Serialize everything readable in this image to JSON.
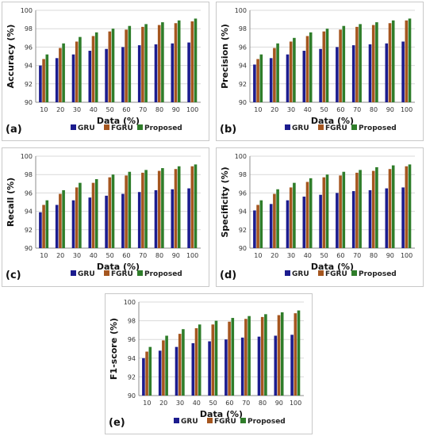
{
  "colors": {
    "GRU": "#1c1c8e",
    "FGRU": "#a5561f",
    "Proposed": "#2f7d2a"
  },
  "chart_data": [
    {
      "type": "bar",
      "label": "(a)",
      "xlabel": "Data (%)",
      "ylabel": "Accuracy (%)",
      "ylim": [
        90,
        100
      ],
      "yticks": [
        90,
        92,
        94,
        96,
        98,
        100
      ],
      "categories": [
        "10",
        "20",
        "30",
        "40",
        "50",
        "60",
        "70",
        "80",
        "90",
        "100"
      ],
      "series": [
        {
          "name": "GRU",
          "values": [
            94.0,
            94.8,
            95.2,
            95.6,
            95.8,
            96.0,
            96.2,
            96.3,
            96.4,
            96.5
          ]
        },
        {
          "name": "FGRU",
          "values": [
            94.7,
            95.9,
            96.6,
            97.2,
            97.7,
            97.9,
            98.2,
            98.4,
            98.6,
            98.8
          ]
        },
        {
          "name": "Proposed",
          "values": [
            95.2,
            96.4,
            97.1,
            97.6,
            98.0,
            98.3,
            98.5,
            98.7,
            98.9,
            99.1
          ]
        }
      ],
      "legend": "bottom"
    },
    {
      "type": "bar",
      "label": "(b)",
      "xlabel": "Data (%)",
      "ylabel": "Precision (%)",
      "ylim": [
        90,
        100
      ],
      "yticks": [
        90,
        92,
        94,
        96,
        98,
        100
      ],
      "categories": [
        "10",
        "20",
        "30",
        "40",
        "50",
        "60",
        "70",
        "80",
        "90",
        "100"
      ],
      "series": [
        {
          "name": "GRU",
          "values": [
            94.1,
            94.8,
            95.2,
            95.6,
            95.8,
            96.0,
            96.2,
            96.3,
            96.4,
            96.6
          ]
        },
        {
          "name": "FGRU",
          "values": [
            94.7,
            95.9,
            96.6,
            97.2,
            97.7,
            97.9,
            98.2,
            98.4,
            98.6,
            98.9
          ]
        },
        {
          "name": "Proposed",
          "values": [
            95.2,
            96.4,
            97.0,
            97.6,
            98.0,
            98.3,
            98.5,
            98.7,
            98.9,
            99.1
          ]
        }
      ],
      "legend": "bottom"
    },
    {
      "type": "bar",
      "label": "(c)",
      "xlabel": "Data (%)",
      "ylabel": "Recall (%)",
      "ylim": [
        90,
        100
      ],
      "yticks": [
        90,
        92,
        94,
        96,
        98,
        100
      ],
      "categories": [
        "10",
        "20",
        "30",
        "40",
        "50",
        "60",
        "70",
        "80",
        "90",
        "100"
      ],
      "series": [
        {
          "name": "GRU",
          "values": [
            93.9,
            94.7,
            95.2,
            95.5,
            95.7,
            95.9,
            96.1,
            96.3,
            96.4,
            96.5
          ]
        },
        {
          "name": "FGRU",
          "values": [
            94.7,
            95.9,
            96.6,
            97.1,
            97.7,
            97.9,
            98.2,
            98.4,
            98.6,
            98.9
          ]
        },
        {
          "name": "Proposed",
          "values": [
            95.2,
            96.3,
            97.1,
            97.5,
            98.0,
            98.3,
            98.5,
            98.7,
            98.9,
            99.1
          ]
        }
      ],
      "legend": "bottom"
    },
    {
      "type": "bar",
      "label": "(d)",
      "xlabel": "Data (%)",
      "ylabel": "Specificity (%)",
      "ylim": [
        90,
        100
      ],
      "yticks": [
        90,
        92,
        94,
        96,
        98,
        100
      ],
      "categories": [
        "10",
        "20",
        "30",
        "40",
        "50",
        "60",
        "70",
        "80",
        "90",
        "100"
      ],
      "series": [
        {
          "name": "GRU",
          "values": [
            94.1,
            94.8,
            95.2,
            95.6,
            95.8,
            96.0,
            96.2,
            96.3,
            96.5,
            96.6
          ]
        },
        {
          "name": "FGRU",
          "values": [
            94.7,
            95.9,
            96.6,
            97.2,
            97.7,
            97.9,
            98.2,
            98.4,
            98.6,
            98.9
          ]
        },
        {
          "name": "Proposed",
          "values": [
            95.2,
            96.4,
            97.1,
            97.6,
            98.0,
            98.3,
            98.5,
            98.8,
            99.0,
            99.1
          ]
        }
      ],
      "legend": "bottom"
    },
    {
      "type": "bar",
      "label": "(e)",
      "xlabel": "Data (%)",
      "ylabel": "F1-score (%)",
      "ylim": [
        90,
        100
      ],
      "yticks": [
        90,
        92,
        94,
        96,
        98,
        100
      ],
      "categories": [
        "10",
        "20",
        "30",
        "40",
        "50",
        "60",
        "70",
        "80",
        "90",
        "100"
      ],
      "series": [
        {
          "name": "GRU",
          "values": [
            94.0,
            94.8,
            95.2,
            95.6,
            95.8,
            96.0,
            96.2,
            96.3,
            96.4,
            96.5
          ]
        },
        {
          "name": "FGRU",
          "values": [
            94.7,
            95.9,
            96.6,
            97.2,
            97.6,
            97.9,
            98.2,
            98.4,
            98.6,
            98.8
          ]
        },
        {
          "name": "Proposed",
          "values": [
            95.2,
            96.4,
            97.1,
            97.6,
            98.0,
            98.3,
            98.5,
            98.7,
            98.9,
            99.1
          ]
        }
      ],
      "legend": "bottom"
    }
  ]
}
